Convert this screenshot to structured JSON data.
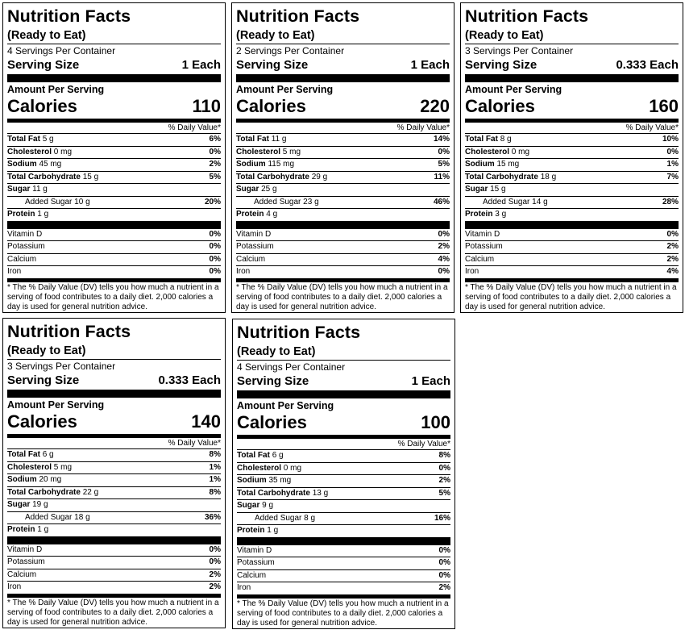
{
  "labels": [
    {
      "title": "Nutrition Facts",
      "subtitle": "(Ready to Eat)",
      "servings": "4 Servings Per Container",
      "serving_size_label": "Serving Size",
      "serving_size_value": "1 Each",
      "amount_per_serving": "Amount Per Serving",
      "calories_label": "Calories",
      "calories_value": "110",
      "dv_header": "% Daily Value*",
      "nutrients": [
        {
          "name": "Total Fat",
          "amount": "5 g",
          "dv": "6%",
          "bold": true,
          "indent": false
        },
        {
          "name": "Cholesterol",
          "amount": "0 mg",
          "dv": "0%",
          "bold": true,
          "indent": false
        },
        {
          "name": "Sodium",
          "amount": "45 mg",
          "dv": "2%",
          "bold": true,
          "indent": false
        },
        {
          "name": "Total Carbohydrate",
          "amount": "15 g",
          "dv": "5%",
          "bold": true,
          "indent": false
        },
        {
          "name": "Sugar",
          "amount": "11 g",
          "dv": "",
          "bold": true,
          "indent": false
        },
        {
          "name": "Added Sugar",
          "amount": "10 g",
          "dv": "20%",
          "bold": false,
          "indent": true
        },
        {
          "name": "Protein",
          "amount": "1 g",
          "dv": "",
          "bold": true,
          "indent": false
        }
      ],
      "vitamins": [
        {
          "name": "Vitamin D",
          "dv": "0%"
        },
        {
          "name": "Potassium",
          "dv": "0%"
        },
        {
          "name": "Calcium",
          "dv": "0%"
        },
        {
          "name": "Iron",
          "dv": "0%"
        }
      ],
      "footnote": "* The % Daily Value (DV) tells you how much a nutrient in a serving of food contributes to a daily diet. 2,000 calories a day is used for general nutrition advice."
    },
    {
      "title": "Nutrition Facts",
      "subtitle": "(Ready to Eat)",
      "servings": "2 Servings Per Container",
      "serving_size_label": "Serving Size",
      "serving_size_value": "1 Each",
      "amount_per_serving": "Amount Per Serving",
      "calories_label": "Calories",
      "calories_value": "220",
      "dv_header": "% Daily Value*",
      "nutrients": [
        {
          "name": "Total Fat",
          "amount": "11 g",
          "dv": "14%",
          "bold": true,
          "indent": false
        },
        {
          "name": "Cholesterol",
          "amount": "5 mg",
          "dv": "0%",
          "bold": true,
          "indent": false
        },
        {
          "name": "Sodium",
          "amount": "115 mg",
          "dv": "5%",
          "bold": true,
          "indent": false
        },
        {
          "name": "Total Carbohydrate",
          "amount": "29 g",
          "dv": "11%",
          "bold": true,
          "indent": false
        },
        {
          "name": "Sugar",
          "amount": "25 g",
          "dv": "",
          "bold": true,
          "indent": false
        },
        {
          "name": "Added Sugar",
          "amount": "23 g",
          "dv": "46%",
          "bold": false,
          "indent": true
        },
        {
          "name": "Protein",
          "amount": "4 g",
          "dv": "",
          "bold": true,
          "indent": false
        }
      ],
      "vitamins": [
        {
          "name": "Vitamin D",
          "dv": "0%"
        },
        {
          "name": "Potassium",
          "dv": "2%"
        },
        {
          "name": "Calcium",
          "dv": "4%"
        },
        {
          "name": "Iron",
          "dv": "0%"
        }
      ],
      "footnote": "* The % Daily Value (DV) tells you how much a nutrient in a serving of food contributes to a daily diet. 2,000 calories a day is used for general nutrition advice."
    },
    {
      "title": "Nutrition Facts",
      "subtitle": "(Ready to Eat)",
      "servings": "3 Servings Per Container",
      "serving_size_label": "Serving Size",
      "serving_size_value": "0.333 Each",
      "amount_per_serving": "Amount Per Serving",
      "calories_label": "Calories",
      "calories_value": "160",
      "dv_header": "% Daily Value*",
      "nutrients": [
        {
          "name": "Total Fat",
          "amount": "8 g",
          "dv": "10%",
          "bold": true,
          "indent": false
        },
        {
          "name": "Cholesterol",
          "amount": "0 mg",
          "dv": "0%",
          "bold": true,
          "indent": false
        },
        {
          "name": "Sodium",
          "amount": "15 mg",
          "dv": "1%",
          "bold": true,
          "indent": false
        },
        {
          "name": "Total Carbohydrate",
          "amount": "18 g",
          "dv": "7%",
          "bold": true,
          "indent": false
        },
        {
          "name": "Sugar",
          "amount": "15 g",
          "dv": "",
          "bold": true,
          "indent": false
        },
        {
          "name": "Added Sugar",
          "amount": "14 g",
          "dv": "28%",
          "bold": false,
          "indent": true
        },
        {
          "name": "Protein",
          "amount": "3 g",
          "dv": "",
          "bold": true,
          "indent": false
        }
      ],
      "vitamins": [
        {
          "name": "Vitamin D",
          "dv": "0%"
        },
        {
          "name": "Potassium",
          "dv": "2%"
        },
        {
          "name": "Calcium",
          "dv": "2%"
        },
        {
          "name": "Iron",
          "dv": "4%"
        }
      ],
      "footnote": "* The % Daily Value (DV) tells you how much a nutrient in a serving of food contributes to a daily diet. 2,000 calories a day is used for general nutrition advice."
    },
    {
      "title": "Nutrition Facts",
      "subtitle": "(Ready to Eat)",
      "servings": "3 Servings Per Container",
      "serving_size_label": "Serving Size",
      "serving_size_value": "0.333 Each",
      "amount_per_serving": "Amount Per Serving",
      "calories_label": "Calories",
      "calories_value": "140",
      "dv_header": "% Daily Value*",
      "nutrients": [
        {
          "name": "Total Fat",
          "amount": "6 g",
          "dv": "8%",
          "bold": true,
          "indent": false
        },
        {
          "name": "Cholesterol",
          "amount": "5 mg",
          "dv": "1%",
          "bold": true,
          "indent": false
        },
        {
          "name": "Sodium",
          "amount": "20 mg",
          "dv": "1%",
          "bold": true,
          "indent": false
        },
        {
          "name": "Total Carbohydrate",
          "amount": "22 g",
          "dv": "8%",
          "bold": true,
          "indent": false
        },
        {
          "name": "Sugar",
          "amount": "19 g",
          "dv": "",
          "bold": true,
          "indent": false
        },
        {
          "name": "Added Sugar",
          "amount": "18 g",
          "dv": "36%",
          "bold": false,
          "indent": true
        },
        {
          "name": "Protein",
          "amount": "1 g",
          "dv": "",
          "bold": true,
          "indent": false
        }
      ],
      "vitamins": [
        {
          "name": "Vitamin D",
          "dv": "0%"
        },
        {
          "name": "Potassium",
          "dv": "0%"
        },
        {
          "name": "Calcium",
          "dv": "2%"
        },
        {
          "name": "Iron",
          "dv": "2%"
        }
      ],
      "footnote": "* The % Daily Value (DV) tells you how much a nutrient in a serving of food contributes to a daily diet. 2,000 calories a day is used for general nutrition advice."
    },
    {
      "title": "Nutrition Facts",
      "subtitle": "(Ready to Eat)",
      "servings": "4 Servings Per Container",
      "serving_size_label": "Serving Size",
      "serving_size_value": "1 Each",
      "amount_per_serving": "Amount Per Serving",
      "calories_label": "Calories",
      "calories_value": "100",
      "dv_header": "% Daily Value*",
      "nutrients": [
        {
          "name": "Total Fat",
          "amount": "6 g",
          "dv": "8%",
          "bold": true,
          "indent": false
        },
        {
          "name": "Cholesterol",
          "amount": "0 mg",
          "dv": "0%",
          "bold": true,
          "indent": false
        },
        {
          "name": "Sodium",
          "amount": "35 mg",
          "dv": "2%",
          "bold": true,
          "indent": false
        },
        {
          "name": "Total Carbohydrate",
          "amount": "13 g",
          "dv": "5%",
          "bold": true,
          "indent": false
        },
        {
          "name": "Sugar",
          "amount": "9 g",
          "dv": "",
          "bold": true,
          "indent": false
        },
        {
          "name": "Added Sugar",
          "amount": "8 g",
          "dv": "16%",
          "bold": false,
          "indent": true
        },
        {
          "name": "Protein",
          "amount": "1 g",
          "dv": "",
          "bold": true,
          "indent": false
        }
      ],
      "vitamins": [
        {
          "name": "Vitamin D",
          "dv": "0%"
        },
        {
          "name": "Potassium",
          "dv": "0%"
        },
        {
          "name": "Calcium",
          "dv": "0%"
        },
        {
          "name": "Iron",
          "dv": "2%"
        }
      ],
      "footnote": "* The % Daily Value (DV) tells you how much a nutrient in a serving of food contributes to a daily diet. 2,000 calories a day is used for general nutrition advice."
    }
  ]
}
